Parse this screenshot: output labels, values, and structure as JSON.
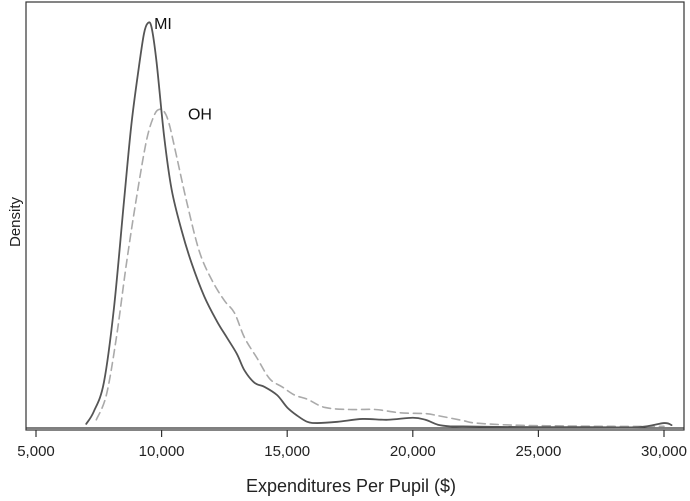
{
  "chart_data": {
    "type": "line",
    "title": "",
    "xlabel": "Expenditures Per Pupil ($)",
    "ylabel": "Density",
    "xlim": [
      5000,
      30500
    ],
    "ylim": [
      0,
      1
    ],
    "xticks": [
      5000,
      10000,
      15000,
      20000,
      25000,
      30000
    ],
    "xtick_labels": [
      "5,000",
      "10,000",
      "15,000",
      "20,000",
      "25,000",
      "30,000"
    ],
    "grid": false,
    "legend": "none",
    "annotations": [
      {
        "text": "MI",
        "x": 9700,
        "y": 0.985,
        "series": "MI"
      },
      {
        "text": "OH",
        "x": 11050,
        "y": 0.765,
        "series": "OH"
      }
    ],
    "series": [
      {
        "name": "MI",
        "color": "#555555",
        "style": "solid",
        "x": [
          7000,
          7300,
          7700,
          8100,
          8500,
          8800,
          9100,
          9300,
          9450,
          9600,
          9800,
          10100,
          10400,
          10800,
          11200,
          11700,
          12200,
          12600,
          13000,
          13300,
          13700,
          14100,
          14600,
          15000,
          15400,
          15800,
          16200,
          17000,
          18000,
          19000,
          20000,
          20500,
          21000,
          21500,
          22000,
          23000,
          25000,
          27000,
          29000,
          30000,
          30300
        ],
        "y": [
          0.01,
          0.04,
          0.11,
          0.29,
          0.55,
          0.74,
          0.88,
          0.96,
          0.985,
          0.975,
          0.89,
          0.71,
          0.58,
          0.48,
          0.4,
          0.32,
          0.26,
          0.22,
          0.18,
          0.14,
          0.11,
          0.1,
          0.08,
          0.05,
          0.03,
          0.015,
          0.012,
          0.015,
          0.022,
          0.02,
          0.025,
          0.02,
          0.008,
          0.004,
          0.004,
          0.003,
          0.002,
          0.002,
          0.002,
          0.012,
          0.007
        ]
      },
      {
        "name": "OH",
        "color": "#aaaaaa",
        "style": "dashed",
        "x": [
          7400,
          7800,
          8200,
          8600,
          9000,
          9400,
          9700,
          9900,
          10100,
          10300,
          10600,
          11000,
          11500,
          12000,
          12500,
          12900,
          13300,
          13800,
          14300,
          14800,
          15300,
          15800,
          16500,
          17500,
          18500,
          19500,
          20500,
          21000,
          22000,
          22500,
          24000,
          26000,
          28000,
          30000
        ],
        "y": [
          0.02,
          0.08,
          0.22,
          0.4,
          0.56,
          0.7,
          0.76,
          0.775,
          0.77,
          0.74,
          0.66,
          0.55,
          0.43,
          0.36,
          0.31,
          0.28,
          0.22,
          0.17,
          0.12,
          0.1,
          0.08,
          0.07,
          0.05,
          0.045,
          0.045,
          0.037,
          0.035,
          0.03,
          0.018,
          0.012,
          0.007,
          0.005,
          0.004,
          0.004
        ]
      }
    ]
  }
}
